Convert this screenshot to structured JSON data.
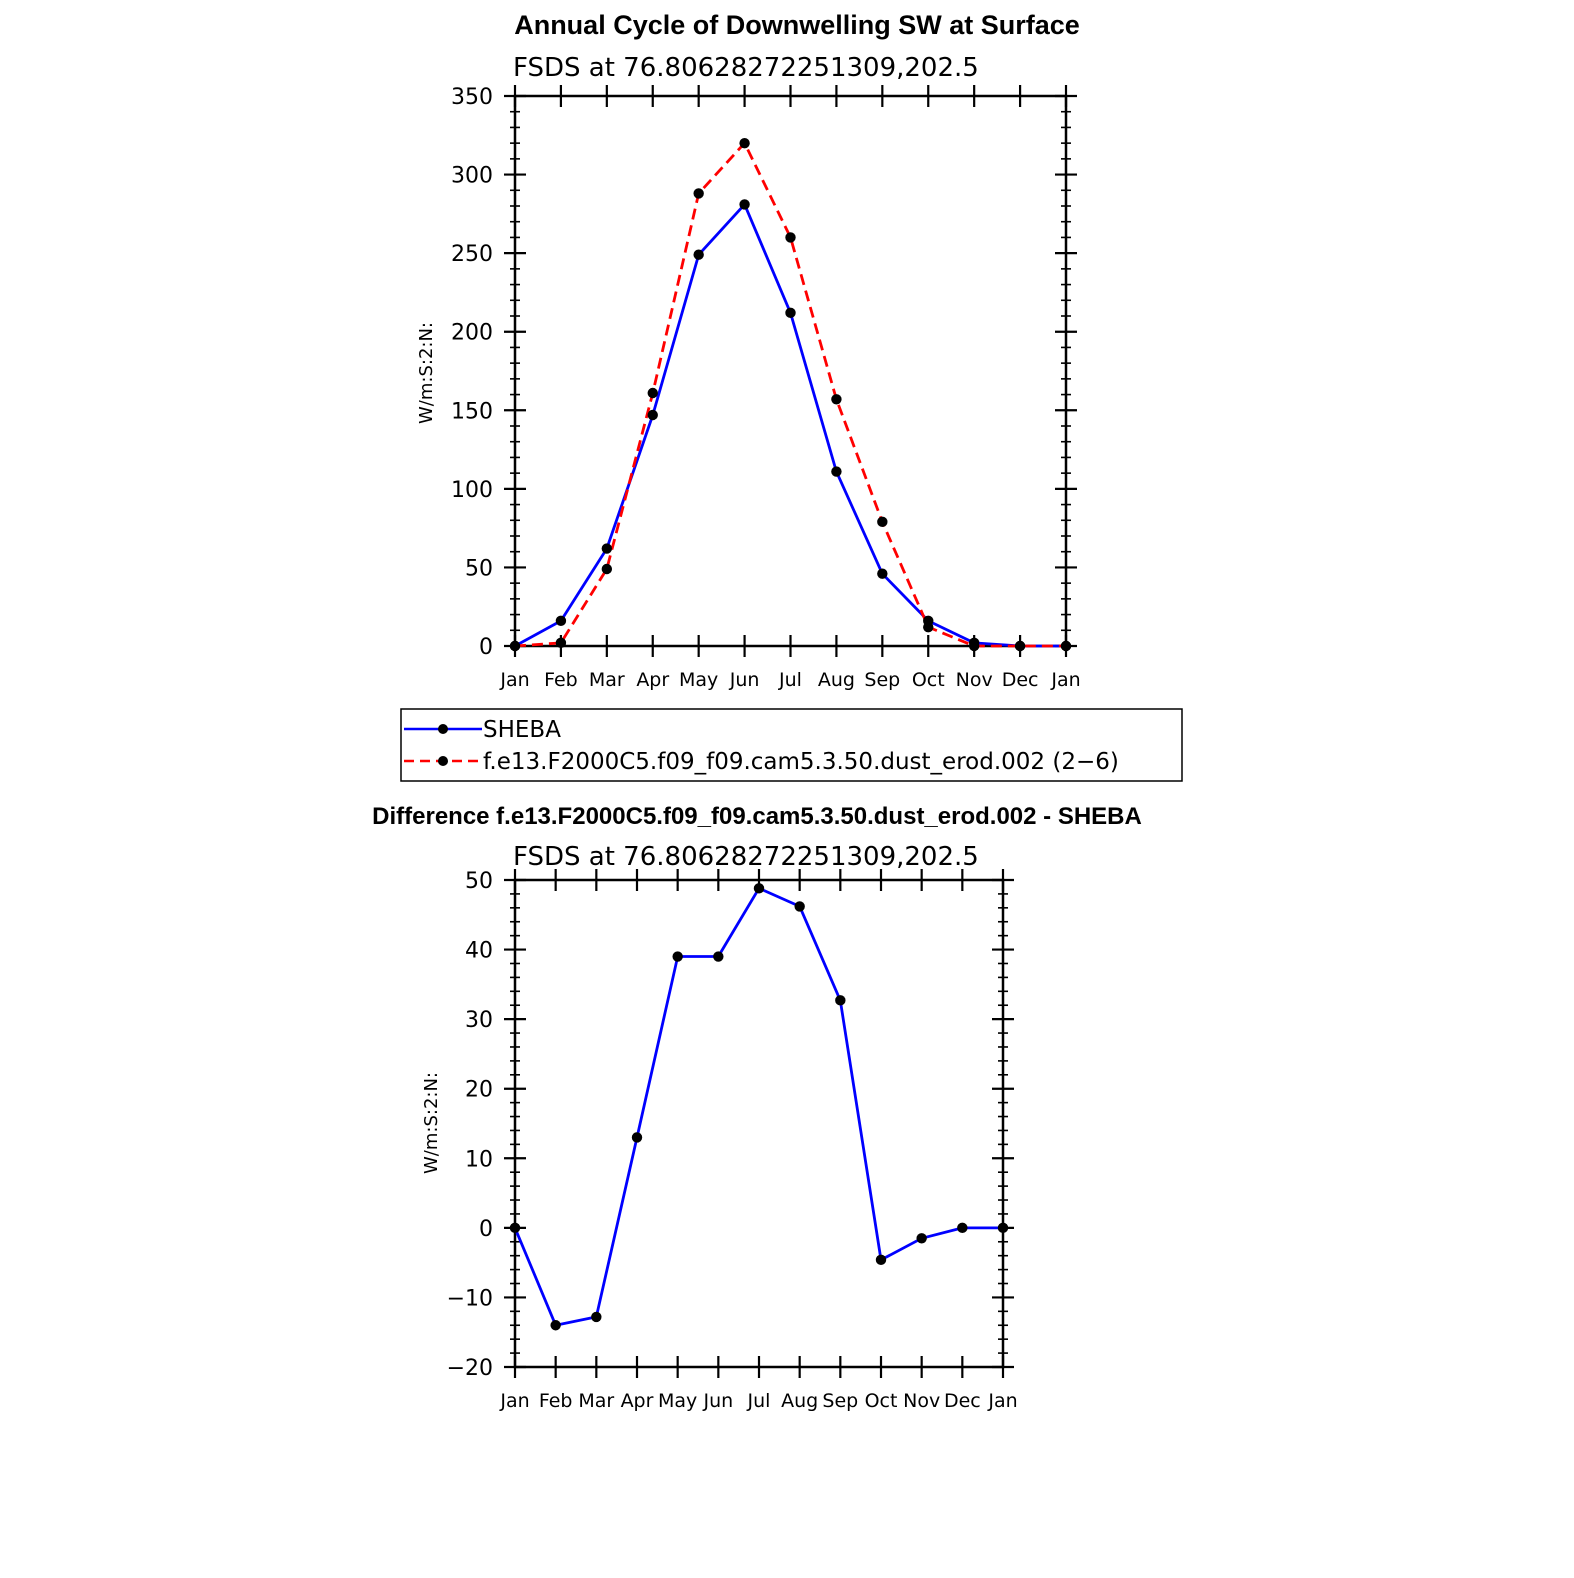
{
  "chart_data": [
    {
      "type": "line",
      "title": "Annual Cycle of Downwelling SW at Surface",
      "subtitle": "FSDS at 76.80628272251309,202.5",
      "ylabel": "W/m:S:2:N:",
      "xlabel": "",
      "ylim": [
        0,
        350
      ],
      "yticks": [
        "0",
        "50",
        "100",
        "150",
        "200",
        "250",
        "300",
        "350"
      ],
      "categories": [
        "Jan",
        "Feb",
        "Mar",
        "Apr",
        "May",
        "Jun",
        "Jul",
        "Aug",
        "Sep",
        "Oct",
        "Nov",
        "Dec",
        "Jan"
      ],
      "series": [
        {
          "name": "SHEBA",
          "color": "#0000ff",
          "dash": "solid",
          "values": [
            0,
            16,
            62,
            147,
            249,
            281,
            212,
            111,
            46,
            16,
            2,
            0,
            0
          ]
        },
        {
          "name": "f.e13.F2000C5.f09_f09.cam5.3.50.dust_erod.002 (2−6)",
          "color": "#ff0000",
          "dash": "dashed",
          "values": [
            0,
            2,
            49,
            161,
            288,
            320,
            260,
            157,
            79,
            12,
            0,
            0,
            0
          ]
        }
      ],
      "legend": "below"
    },
    {
      "type": "line",
      "title": "Difference f.e13.F2000C5.f09_f09.cam5.3.50.dust_erod.002 - SHEBA",
      "subtitle": "FSDS at 76.80628272251309,202.5",
      "ylabel": "W/m:S:2:N:",
      "xlabel": "",
      "ylim": [
        -20,
        50
      ],
      "yticks": [
        "−20",
        "−10",
        "0",
        "10",
        "20",
        "30",
        "40",
        "50"
      ],
      "categories": [
        "Jan",
        "Feb",
        "Mar",
        "Apr",
        "May",
        "Jun",
        "Jul",
        "Aug",
        "Sep",
        "Oct",
        "Nov",
        "Dec",
        "Jan"
      ],
      "series": [
        {
          "name": "Difference",
          "color": "#0000ff",
          "dash": "solid",
          "values": [
            0,
            -14,
            -12.8,
            13,
            39,
            39,
            48.8,
            46.2,
            32.7,
            -4.6,
            -1.5,
            0,
            0
          ]
        }
      ]
    }
  ]
}
